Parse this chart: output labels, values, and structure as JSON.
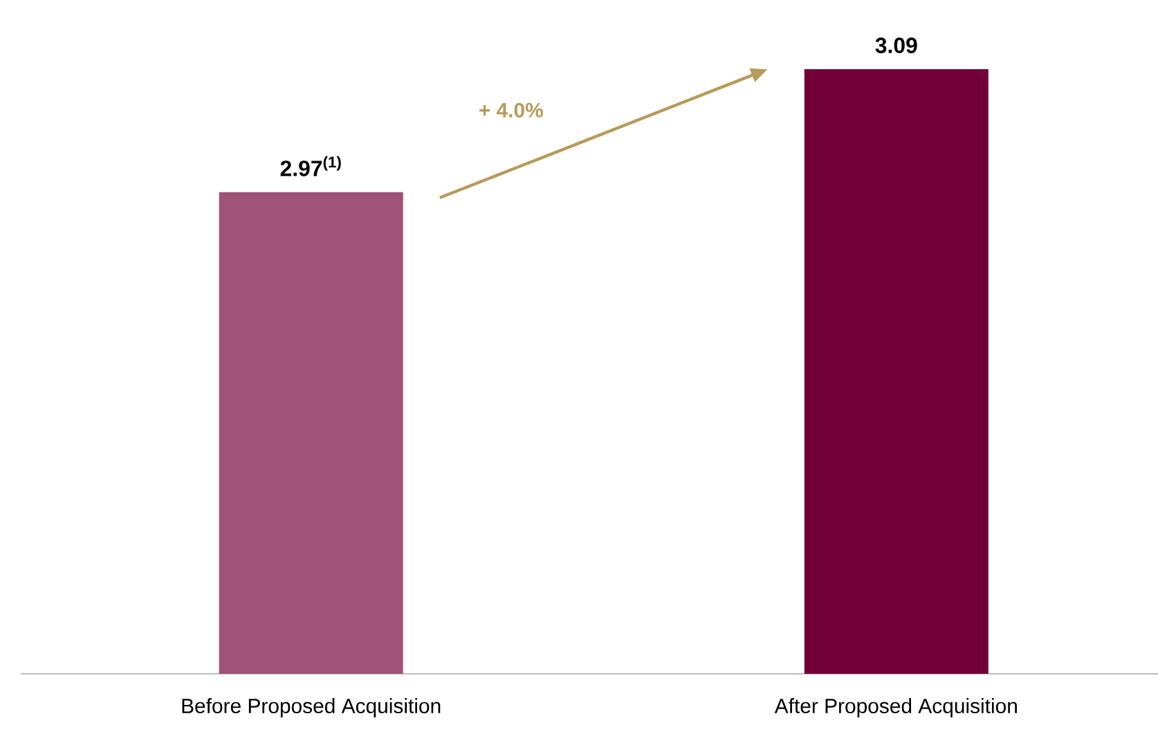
{
  "chart_data": {
    "type": "bar",
    "categories": [
      "Before Proposed Acquisition",
      "After Proposed Acquisition"
    ],
    "values": [
      2.97,
      3.09
    ],
    "colors": [
      "#a05277",
      "#720038"
    ],
    "value_labels": [
      "2.97$^{(1)}$",
      "3.09"
    ],
    "ylim": [
      2.5,
      3.09
    ],
    "tick_labels": "x",
    "annotations": [
      "+ 4.0%"
    ]
  }
}
